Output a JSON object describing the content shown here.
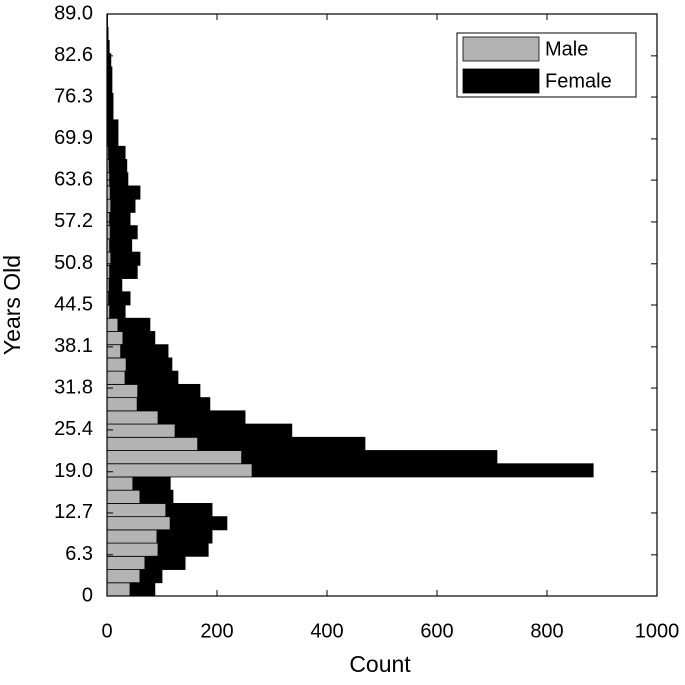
{
  "chart_data": {
    "type": "histogram",
    "orientation": "horizontal",
    "stacked": true,
    "xlabel": "Count",
    "ylabel": "Years Old",
    "xlim": [
      0,
      1000
    ],
    "ylim": [
      0,
      89
    ],
    "xticks": [
      0,
      200,
      400,
      600,
      800,
      1000
    ],
    "yticks": [
      0,
      6.3,
      12.7,
      {
        "value": 19,
        "label": "19.0"
      },
      25.4,
      31.8,
      38.1,
      44.5,
      50.8,
      57.2,
      63.6,
      69.9,
      76.3,
      82.6,
      {
        "value": 89,
        "label": "89.0"
      }
    ],
    "bins": [
      0,
      2.023,
      4.045,
      6.068,
      8.091,
      10.114,
      12.136,
      14.159,
      16.182,
      18.205,
      20.227,
      22.25,
      24.273,
      26.295,
      28.318,
      30.341,
      32.364,
      34.386,
      36.409,
      38.432,
      40.455,
      42.477,
      44.5,
      46.523,
      48.545,
      50.568,
      52.591,
      54.614,
      56.636,
      58.659,
      60.682,
      62.705,
      64.727,
      66.75,
      68.773,
      70.795,
      72.818,
      74.841,
      76.864,
      78.886,
      80.909,
      82.932,
      84.955,
      86.977,
      89
    ],
    "legend": "top-right",
    "series": [
      {
        "name": "Male",
        "color": "#b3b3b3",
        "values": [
          42,
          60,
          69,
          93,
          91,
          115,
          107,
          60,
          47,
          264,
          245,
          165,
          124,
          93,
          55,
          56,
          33,
          35,
          25,
          29,
          20,
          5,
          3,
          4,
          5,
          7,
          5,
          6,
          5,
          7,
          6,
          5,
          4,
          3,
          2,
          2,
          1,
          1,
          1,
          1,
          0,
          0,
          0,
          0
        ]
      },
      {
        "name": "Female",
        "color": "#000000",
        "values": [
          45,
          40,
          73,
          91,
          100,
          103,
          84,
          60,
          68,
          620,
          464,
          304,
          212,
          158,
          132,
          113,
          96,
          83,
          86,
          58,
          58,
          28,
          39,
          23,
          50,
          53,
          40,
          49,
          37,
          44,
          54,
          33,
          32,
          30,
          18,
          18,
          10,
          10,
          8,
          8,
          7,
          4,
          2,
          1
        ]
      }
    ]
  }
}
